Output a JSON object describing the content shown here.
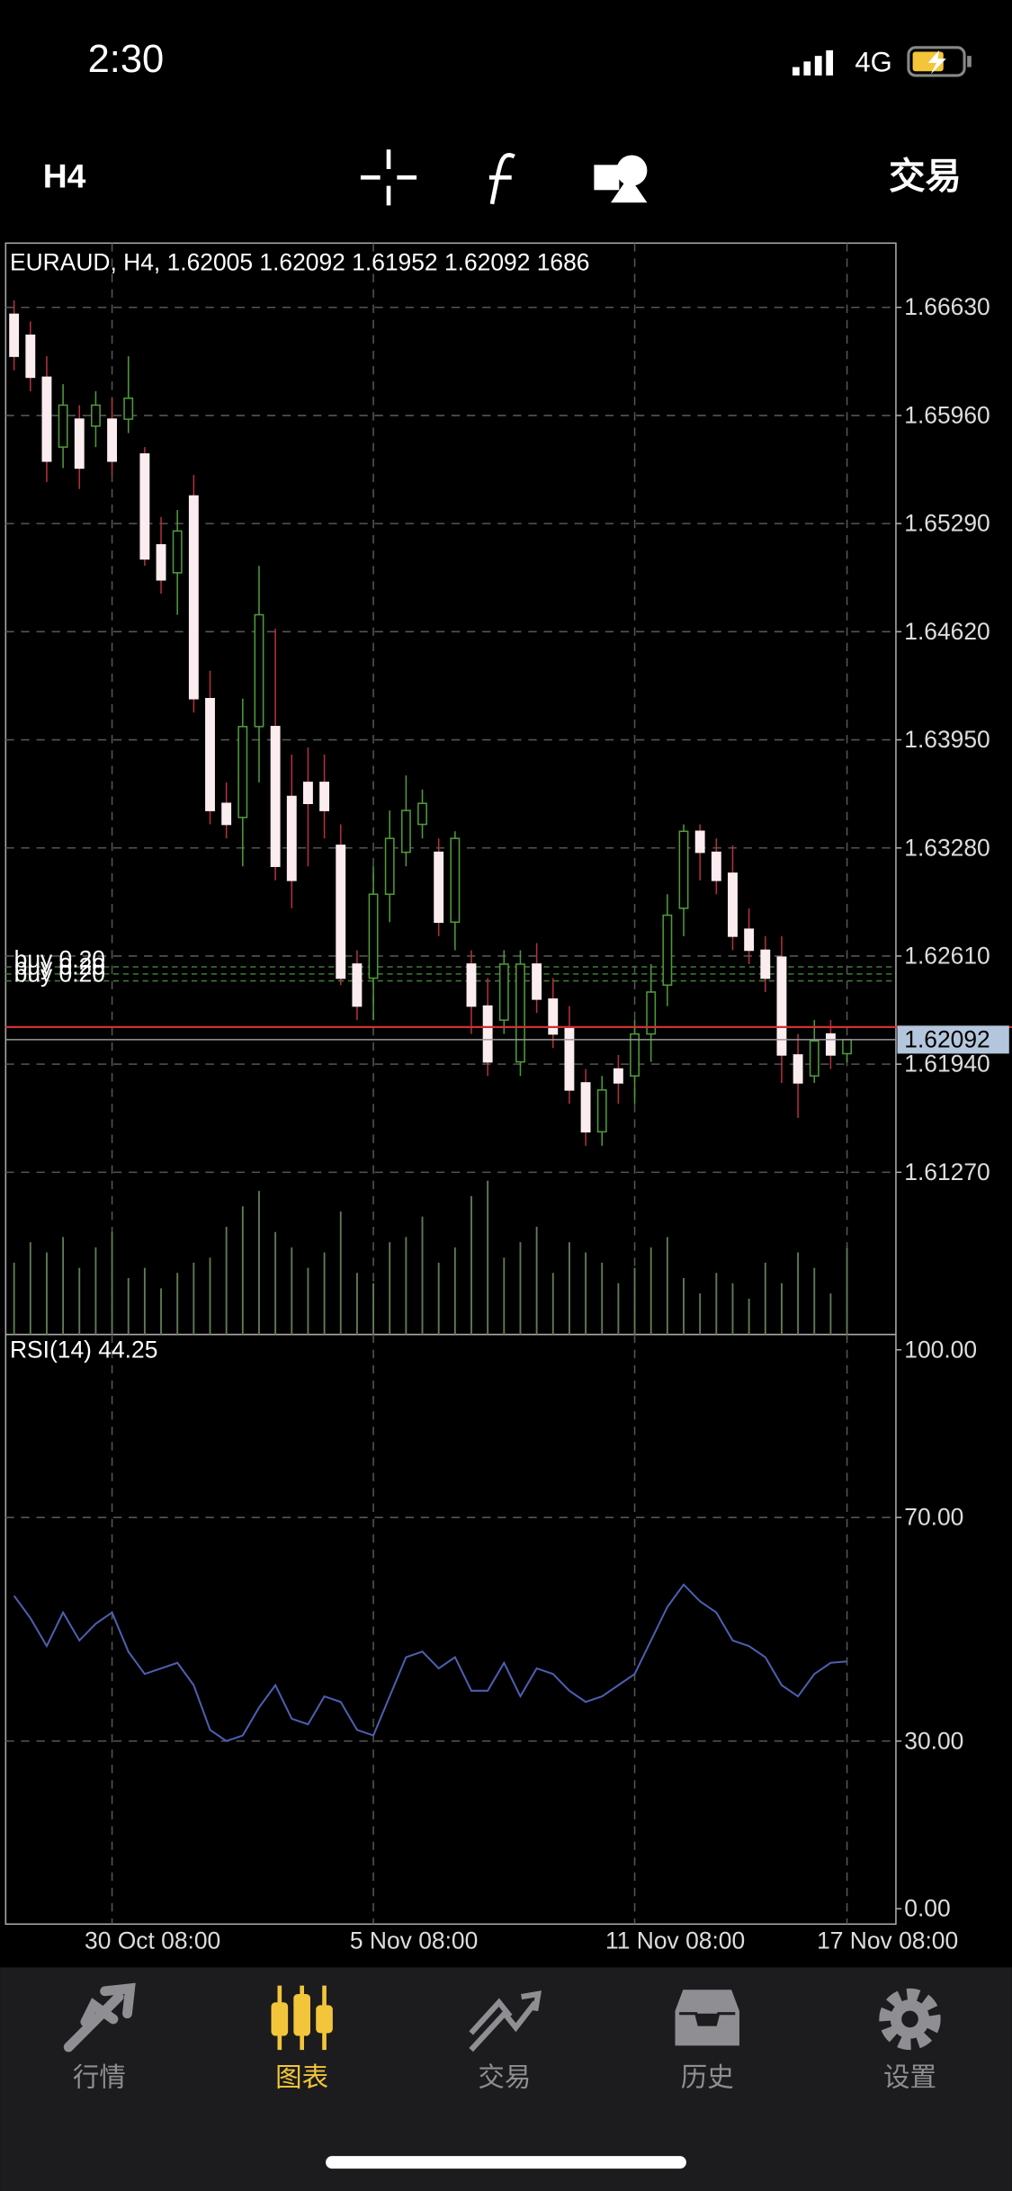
{
  "status_bar": {
    "time": "2:30",
    "network": "4G"
  },
  "toolbar": {
    "timeframe": "H4",
    "trade": "交易"
  },
  "chart_data": [
    {
      "type": "candlestick",
      "info": "EURAUD, H4, 1.62005 1.62092 1.61952 1.62092 1686",
      "categories": [
        null,
        null,
        null,
        null,
        null,
        null,
        "30 Oct 08:00",
        null,
        null,
        null,
        null,
        null,
        null,
        null,
        null,
        null,
        null,
        null,
        null,
        null,
        null,
        null,
        "5 Nov 08:00",
        null,
        null,
        null,
        null,
        null,
        null,
        null,
        null,
        null,
        null,
        null,
        null,
        null,
        null,
        null,
        "11 Nov 08:00",
        null,
        null,
        null,
        null,
        null,
        null,
        null,
        null,
        null,
        null,
        null,
        null,
        "17 Nov 08:00"
      ],
      "open": [
        1.66587,
        1.66457,
        1.66197,
        1.65764,
        1.65937,
        1.65894,
        1.65937,
        1.65937,
        1.65721,
        1.65158,
        1.64985,
        1.65461,
        1.64205,
        1.63556,
        1.63469,
        1.64032,
        1.64032,
        1.63599,
        1.63686,
        1.63686,
        1.63296,
        1.6256,
        1.62473,
        1.62993,
        1.63253,
        1.63426,
        1.63253,
        1.6282,
        1.6256,
        1.623,
        1.62213,
        1.61954,
        1.6256,
        1.62343,
        1.6217,
        1.61824,
        1.61521,
        1.6191,
        1.61867,
        1.62127,
        1.6243,
        1.62906,
        1.63383,
        1.63253,
        1.63123,
        1.62776,
        1.62646,
        1.62603,
        1.61997,
        1.61867,
        1.62127,
        1.62005
      ],
      "high": [
        1.66673,
        1.66543,
        1.66327,
        1.66154,
        1.66024,
        1.6611,
        1.66067,
        1.66327,
        1.65764,
        1.65331,
        1.65374,
        1.65591,
        1.64378,
        1.63686,
        1.64205,
        1.65028,
        1.64638,
        1.63859,
        1.63902,
        1.63859,
        1.63426,
        1.62646,
        1.63166,
        1.63512,
        1.63729,
        1.63642,
        1.63339,
        1.63383,
        1.62646,
        1.62473,
        1.62646,
        1.62646,
        1.6269,
        1.62473,
        1.623,
        1.6191,
        1.61867,
        1.61997,
        1.62213,
        1.6256,
        1.62993,
        1.63426,
        1.63426,
        1.63339,
        1.63296,
        1.62906,
        1.62733,
        1.62733,
        1.62127,
        1.62213,
        1.62213,
        1.62092
      ],
      "low": [
        1.6624,
        1.6611,
        1.65548,
        1.65634,
        1.65504,
        1.65764,
        1.65591,
        1.65851,
        1.65028,
        1.64855,
        1.64725,
        1.64119,
        1.63426,
        1.63339,
        1.63166,
        1.63686,
        1.63079,
        1.62906,
        1.63166,
        1.63339,
        1.6243,
        1.62213,
        1.62213,
        1.6282,
        1.63166,
        1.63339,
        1.62733,
        1.62646,
        1.62127,
        1.61867,
        1.62127,
        1.61867,
        1.62257,
        1.6204,
        1.61694,
        1.61434,
        1.61434,
        1.61694,
        1.61694,
        1.61954,
        1.623,
        1.62733,
        1.63079,
        1.62993,
        1.62646,
        1.6256,
        1.62387,
        1.61824,
        1.61607,
        1.61824,
        1.6191,
        1.61952
      ],
      "close": [
        1.66327,
        1.66197,
        1.65677,
        1.66024,
        1.65634,
        1.66024,
        1.65677,
        1.66067,
        1.65071,
        1.64941,
        1.65244,
        1.64205,
        1.63512,
        1.63426,
        1.64032,
        1.64725,
        1.63166,
        1.63079,
        1.63556,
        1.63512,
        1.62473,
        1.623,
        1.62993,
        1.63339,
        1.63512,
        1.63556,
        1.6282,
        1.63339,
        1.623,
        1.61954,
        1.6256,
        1.6256,
        1.62343,
        1.62127,
        1.6178,
        1.61521,
        1.6178,
        1.61824,
        1.62127,
        1.62387,
        1.62863,
        1.63383,
        1.63253,
        1.63079,
        1.62733,
        1.62646,
        1.62473,
        1.61997,
        1.61824,
        1.62084,
        1.61997,
        1.62092
      ],
      "volume": [
        1400,
        1800,
        1600,
        1900,
        1300,
        1700,
        2000,
        1100,
        1300,
        900,
        1200,
        1400,
        1500,
        2100,
        2500,
        2800,
        2000,
        1700,
        1300,
        1600,
        2400,
        1200,
        1000,
        1800,
        1900,
        2300,
        1400,
        1700,
        2700,
        3000,
        1500,
        1800,
        2100,
        1200,
        1800,
        1600,
        1400,
        1000,
        1300,
        1700,
        1900,
        1100,
        800,
        1200,
        1000,
        700,
        1400,
        1000,
        1600,
        1300,
        800,
        1686
      ],
      "ylim": [
        1.60265,
        1.67028
      ],
      "yticks": [
        {
          "value": 1.6663,
          "label": "1.66630"
        },
        {
          "value": 1.6596,
          "label": "1.65960"
        },
        {
          "value": 1.6529,
          "label": "1.65290"
        },
        {
          "value": 1.6462,
          "label": "1.64620"
        },
        {
          "value": 1.6395,
          "label": "1.63950"
        },
        {
          "value": 1.6328,
          "label": "1.63280"
        },
        {
          "value": 1.6261,
          "label": "1.62610"
        },
        {
          "value": 1.6194,
          "label": "1.61940"
        },
        {
          "value": 1.6127,
          "label": "1.61270"
        }
      ],
      "current_price": 1.62092,
      "ask": 1.6217,
      "orders": [
        {
          "label": "buy 0.20",
          "price": 1.62543
        },
        {
          "label": "buy 0.20",
          "price": 1.62499
        },
        {
          "label": "buy 0.20",
          "price": 1.62456
        }
      ],
      "colors": {
        "up": "#4f9a3a",
        "down": "#fbecef",
        "wick_down": "#b3303c",
        "volume": "#5f7d55",
        "order": "#3f7a38",
        "ask": "#d03030",
        "price_tag": "#b4c6dc"
      },
      "grid": true
    },
    {
      "type": "line",
      "title": "RSI(14) 44.25",
      "values": [
        56,
        52,
        47,
        53,
        48,
        51,
        53,
        46,
        42,
        43,
        44,
        40,
        32,
        30,
        31,
        36,
        40,
        34,
        33,
        38,
        37,
        32,
        31,
        38,
        45,
        46,
        43,
        45,
        39,
        39,
        44,
        38,
        43,
        42,
        39,
        37,
        38,
        40,
        42,
        48,
        54,
        58,
        55,
        53,
        48,
        47,
        45,
        40,
        38,
        42,
        44,
        44.25
      ],
      "ylim": [
        -2.75,
        102.75
      ],
      "yticks": [
        {
          "value": 100,
          "label": "100.00"
        },
        {
          "value": 70,
          "label": "70.00"
        },
        {
          "value": 30,
          "label": "30.00"
        },
        {
          "value": 0,
          "label": "0.00"
        }
      ],
      "color": "#4d5fb0",
      "grid": true
    }
  ],
  "tab_bar": {
    "tabs": [
      {
        "label": "行情"
      },
      {
        "label": "图表"
      },
      {
        "label": "交易"
      },
      {
        "label": "历史"
      },
      {
        "label": "设置"
      }
    ],
    "active": 1,
    "active_color": "#f3c53a",
    "color": "#8e8e93"
  }
}
